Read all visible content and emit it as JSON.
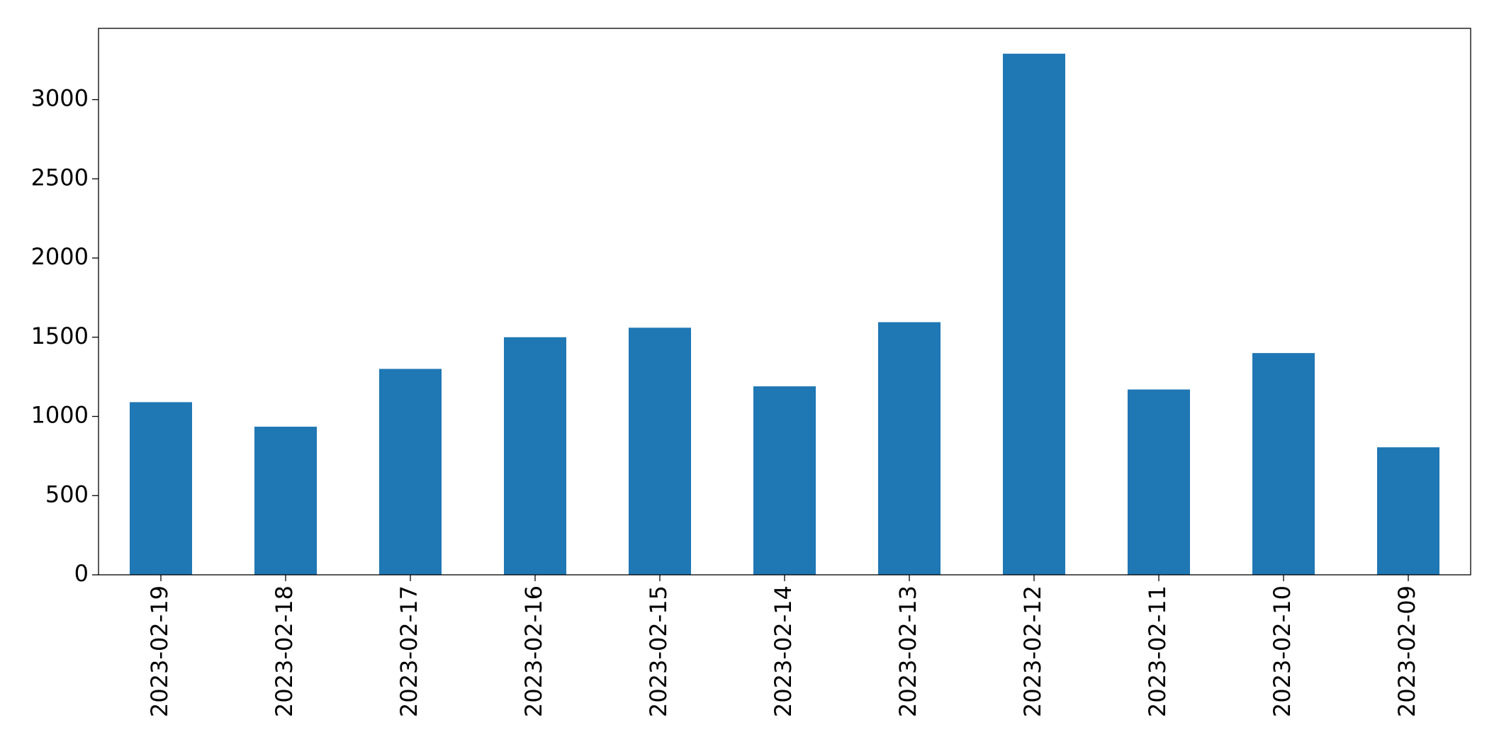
{
  "chart_data": {
    "type": "bar",
    "categories": [
      "2023-02-19",
      "2023-02-18",
      "2023-02-17",
      "2023-02-16",
      "2023-02-15",
      "2023-02-14",
      "2023-02-13",
      "2023-02-12",
      "2023-02-11",
      "2023-02-10",
      "2023-02-09"
    ],
    "values": [
      1090,
      935,
      1300,
      1500,
      1560,
      1190,
      1595,
      3290,
      1170,
      1400,
      805
    ],
    "color": "#1f77b4",
    "ylim": [
      0,
      3450
    ],
    "yticks": [
      0,
      500,
      1000,
      1500,
      2000,
      2500,
      3000
    ],
    "grid": false
  }
}
